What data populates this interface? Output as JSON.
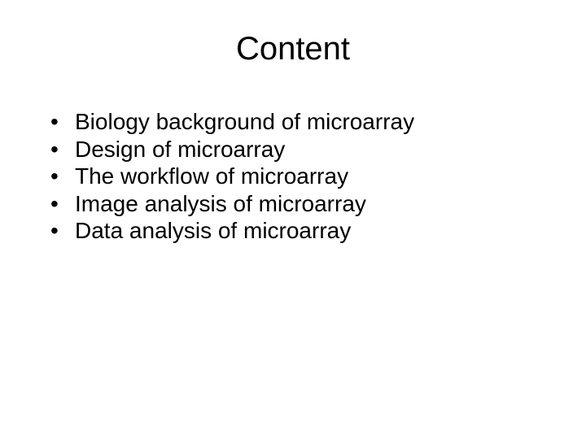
{
  "slide": {
    "title": "Content",
    "title_fontsize": 40,
    "title_align": "center",
    "background_color": "#ffffff",
    "text_color": "#000000",
    "bullets": [
      {
        "marker": "•",
        "text": "Biology background of microarray"
      },
      {
        "marker": "•",
        "text": "Design of microarray"
      },
      {
        "marker": "•",
        "text": "The workflow of microarray"
      },
      {
        "marker": "•",
        "text": "Image analysis of microarray"
      },
      {
        "marker": "•",
        "text": "Data analysis of microarray"
      }
    ],
    "bullet_fontsize": 28,
    "font_family": "Arial"
  }
}
